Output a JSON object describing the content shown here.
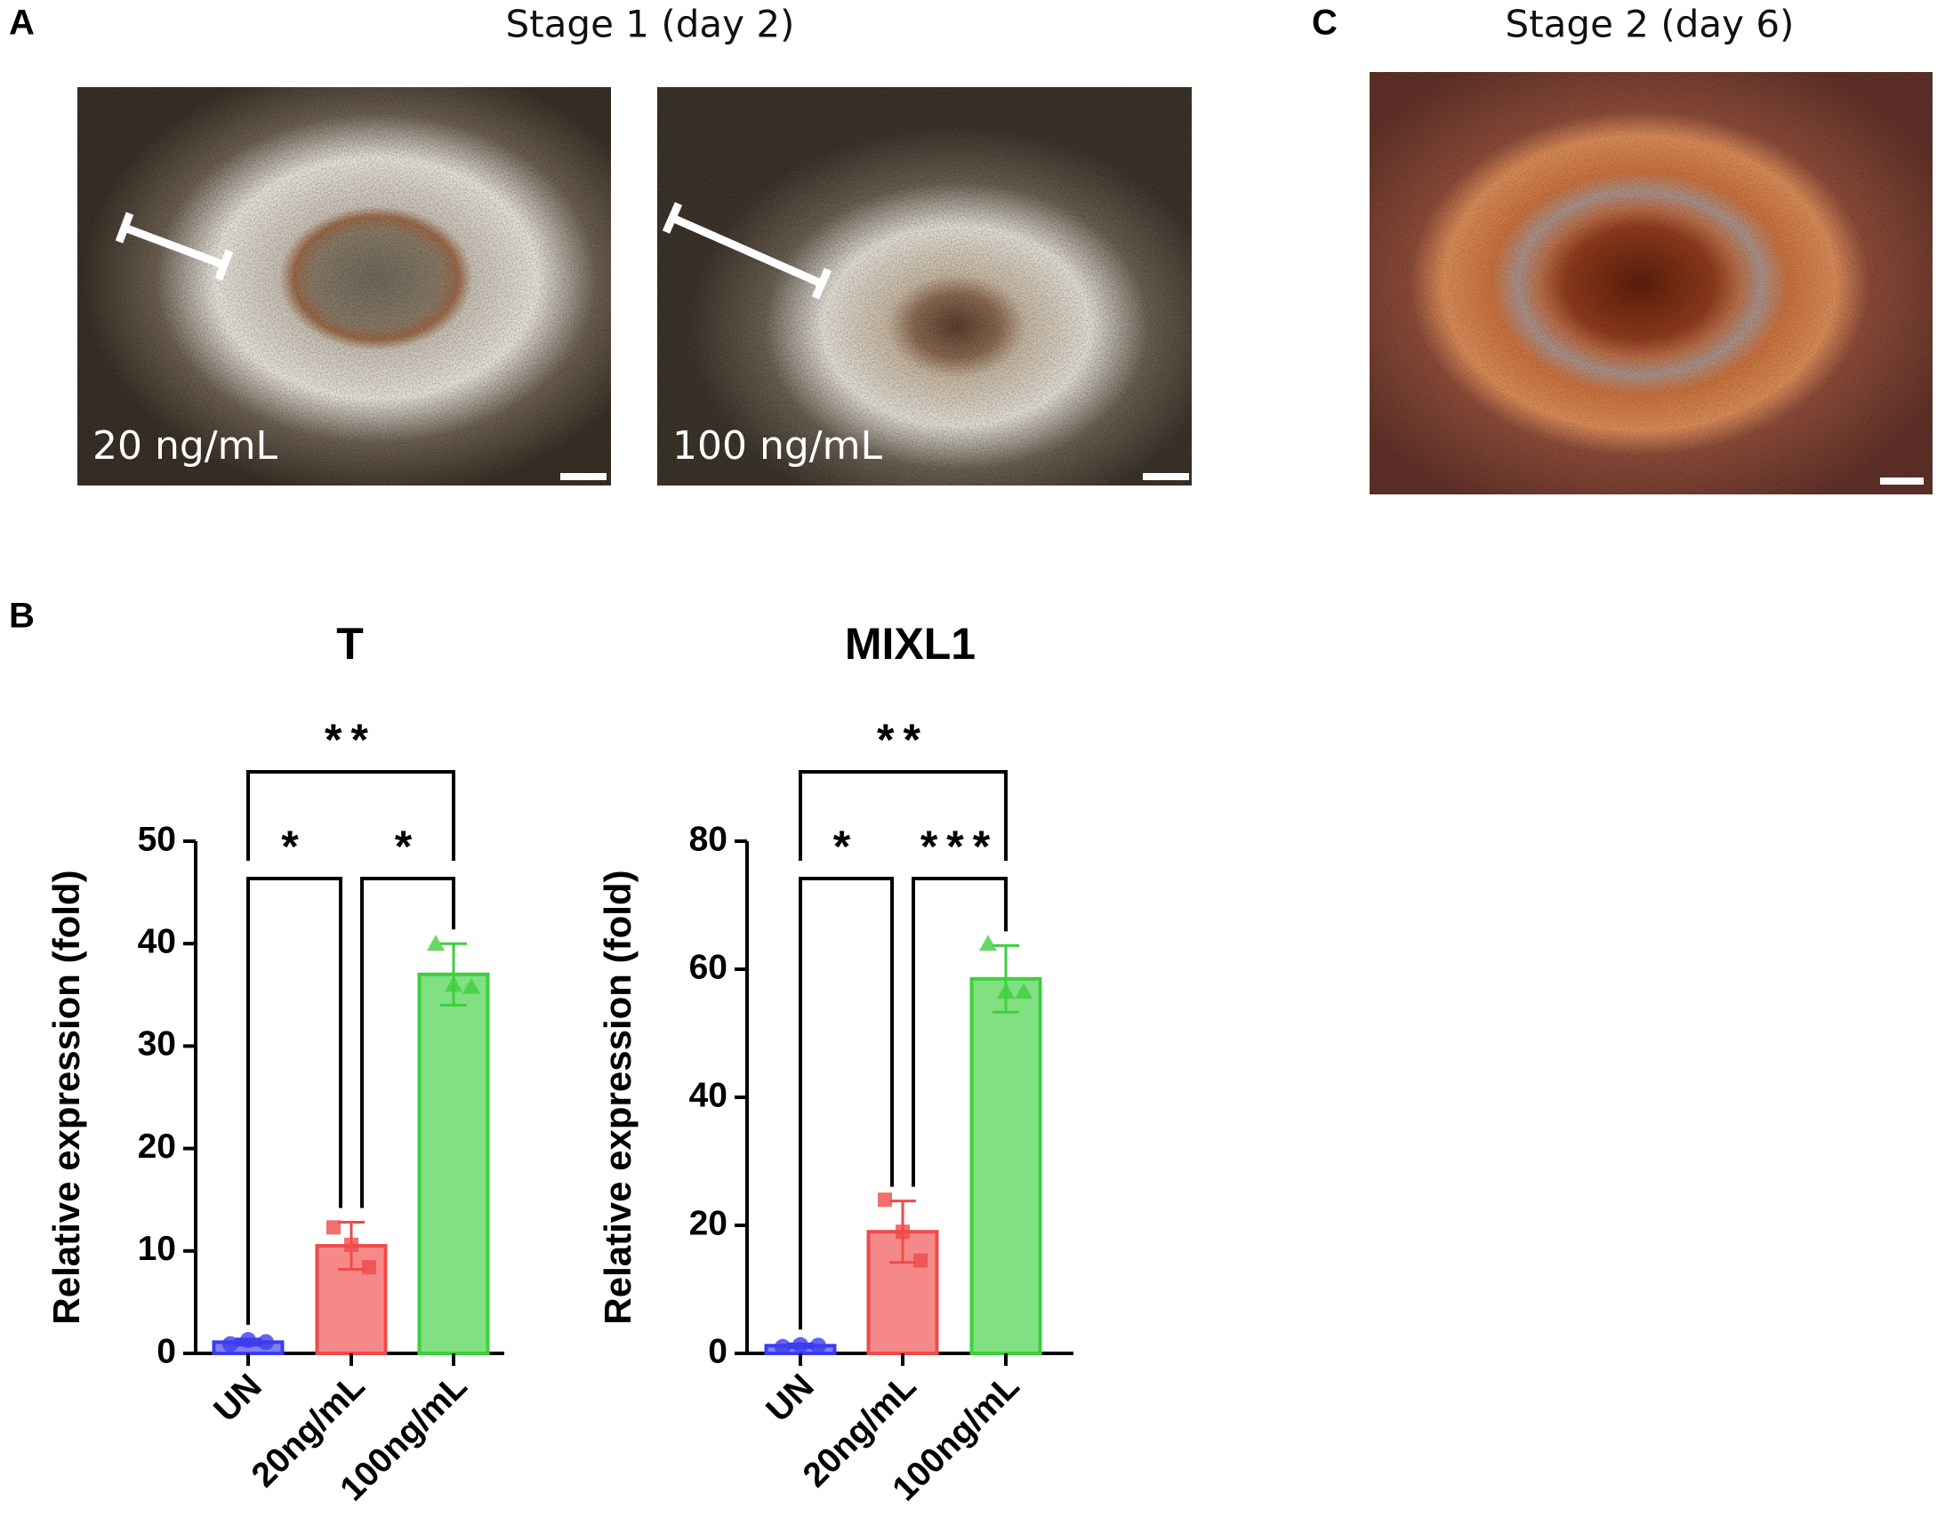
{
  "panels": {
    "a": {
      "label": "A",
      "title": "Stage 1 (day 2)",
      "images": [
        "20 ng/mL",
        "100 ng/mL"
      ]
    },
    "b": {
      "label": "B"
    },
    "c": {
      "label": "C",
      "title": "Stage 2 (day 6)"
    }
  },
  "chart_data": [
    {
      "type": "bar",
      "title": "T",
      "y_label": "Relative expression (fold)",
      "categories": [
        "UN",
        "20ng/mL",
        "100ng/mL"
      ],
      "values": [
        1.1,
        10.5,
        37
      ],
      "errors": [
        0.3,
        2.3,
        3.0
      ],
      "points": [
        [
          0.9,
          1.3,
          1.1
        ],
        [
          12.3,
          10.6,
          8.4
        ],
        [
          40,
          36,
          35.8
        ]
      ],
      "colors": [
        "#3c3cf0",
        "#f04a4a",
        "#3ecf3e"
      ],
      "markers": [
        "circle",
        "square",
        "triangle"
      ],
      "ylim": [
        0,
        50
      ],
      "yticks": [
        0,
        10,
        20,
        30,
        40,
        50
      ],
      "significance": [
        "*",
        "*",
        "**"
      ]
    },
    {
      "type": "bar",
      "title": "MIXL1",
      "y_label": "Relative expression (fold)",
      "categories": [
        "UN",
        "20ng/mL",
        "100ng/mL"
      ],
      "values": [
        1.2,
        19,
        58.5
      ],
      "errors": [
        0.3,
        4.8,
        5.2
      ],
      "points": [
        [
          1.0,
          1.3,
          1.2
        ],
        [
          24,
          19,
          14.5
        ],
        [
          64,
          56.5,
          56.5
        ]
      ],
      "colors": [
        "#3c3cf0",
        "#f04a4a",
        "#3ecf3e"
      ],
      "markers": [
        "circle",
        "square",
        "triangle"
      ],
      "ylim": [
        0,
        80
      ],
      "yticks": [
        0,
        20,
        40,
        60,
        80
      ],
      "significance": [
        "*",
        "***",
        "**"
      ]
    }
  ]
}
